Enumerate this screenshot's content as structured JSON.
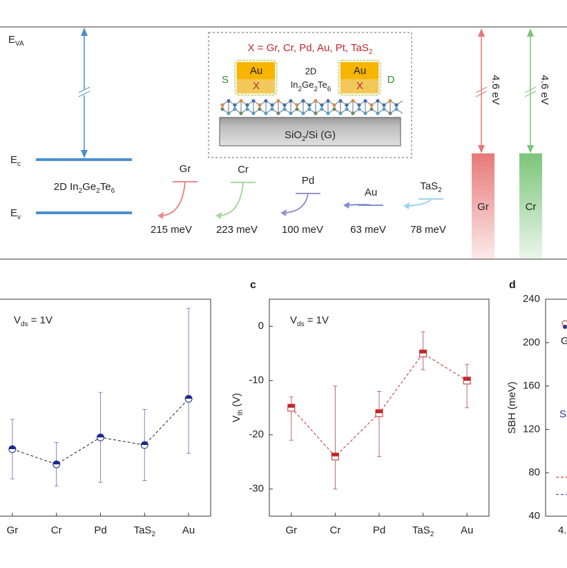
{
  "diagram": {
    "evac": {
      "parts": [
        "E",
        "VA"
      ]
    },
    "ec": {
      "parts": [
        "E",
        "c"
      ]
    },
    "ev": {
      "parts": [
        "E",
        "v"
      ]
    },
    "material": {
      "parts": [
        "2D In",
        "2",
        "Ge",
        "2",
        "Te",
        "6"
      ]
    },
    "band_color": "#4a8fcf",
    "metals": [
      {
        "name": {
          "parts": [
            "Gr"
          ]
        },
        "sbh": "215 meV",
        "color": "#e88a8a"
      },
      {
        "name": {
          "parts": [
            "Cr"
          ]
        },
        "sbh": "223 meV",
        "color": "#a8d8a0"
      },
      {
        "name": {
          "parts": [
            "Pd"
          ]
        },
        "sbh": "100 meV",
        "color": "#9b8fd0"
      },
      {
        "name": {
          "parts": [
            "Au"
          ]
        },
        "sbh": "63 meV",
        "color": "#7f8fd6"
      },
      {
        "name": {
          "parts": [
            "TaS",
            "2"
          ]
        },
        "sbh": "78 meV",
        "color": "#9fd3ee"
      }
    ],
    "inset": {
      "title": {
        "parts": [
          "X = Gr, Cr, Pd, Au, Pt, TaS",
          "2"
        ]
      },
      "source": "S",
      "drain": "D",
      "electrodes": [
        {
          "top": "Au",
          "bottom": "X"
        },
        {
          "top": "Au",
          "bottom": "X"
        }
      ],
      "channel_top": "2D",
      "channel": {
        "parts": [
          "In",
          "2",
          "Ge",
          "2",
          "Te",
          "6"
        ]
      },
      "substrate": {
        "parts": [
          "SiO",
          "2",
          "/Si (G)"
        ]
      }
    },
    "work_function_bars": [
      {
        "gap": "4.6 eV",
        "label": "Gr",
        "color": "#e87878"
      },
      {
        "gap": "4.6 eV",
        "label": "Cr",
        "color": "#7cc47a"
      }
    ]
  },
  "chart_data": [
    {
      "type": "errorbar",
      "annotation": {
        "parts": [
          "V",
          "ds",
          " = 1V"
        ]
      },
      "categories": [
        {
          "parts": [
            "Gr"
          ]
        },
        {
          "parts": [
            "Cr"
          ]
        },
        {
          "parts": [
            "Pd"
          ]
        },
        {
          "parts": [
            "TaS",
            "2"
          ]
        },
        {
          "parts": [
            "Au"
          ]
        }
      ],
      "values": [
        30.9,
        23.9,
        36.3,
        32.8,
        54.1
      ],
      "err_plus": [
        13.7,
        10,
        20.7,
        16.4,
        41.7
      ],
      "err_minus": [
        13.7,
        10,
        20.7,
        16.4,
        25.2
      ],
      "ylim": [
        0,
        100
      ],
      "color": "#1a2a8f",
      "error_color": "#7a8ab8",
      "marker": "circle"
    },
    {
      "type": "errorbar",
      "panel": "c",
      "ylabel": {
        "parts": [
          "V",
          "th",
          " (V)"
        ]
      },
      "annotation": {
        "parts": [
          "V",
          "ds",
          " = 1V"
        ]
      },
      "categories": [
        {
          "parts": [
            "Gr"
          ]
        },
        {
          "parts": [
            "Cr"
          ]
        },
        {
          "parts": [
            "Pd"
          ]
        },
        {
          "parts": [
            "TaS",
            "2"
          ]
        },
        {
          "parts": [
            "Au"
          ]
        }
      ],
      "values": [
        -15,
        -24,
        -16,
        -5,
        -10
      ],
      "err_plus": [
        2,
        13,
        4,
        4,
        3
      ],
      "err_minus": [
        6,
        6,
        8,
        3,
        5
      ],
      "ylim": [
        -35,
        5
      ],
      "yticks": [
        0,
        -10,
        -20,
        -30
      ],
      "color": "#c0282d",
      "error_color": "#b86a6a",
      "marker": "square"
    },
    {
      "type": "hline",
      "panel": "d",
      "ylabel": "SBH (meV)",
      "annotations": [
        "Gr",
        "S"
      ],
      "xtick_labels": [
        "4."
      ],
      "ylim": [
        40,
        240
      ],
      "yticks": [
        40,
        80,
        120,
        160,
        200,
        240
      ],
      "series": [
        {
          "color": "#c0282d",
          "values": [
            76
          ]
        },
        {
          "color": "#30308f",
          "values": [
            60
          ]
        }
      ]
    }
  ]
}
